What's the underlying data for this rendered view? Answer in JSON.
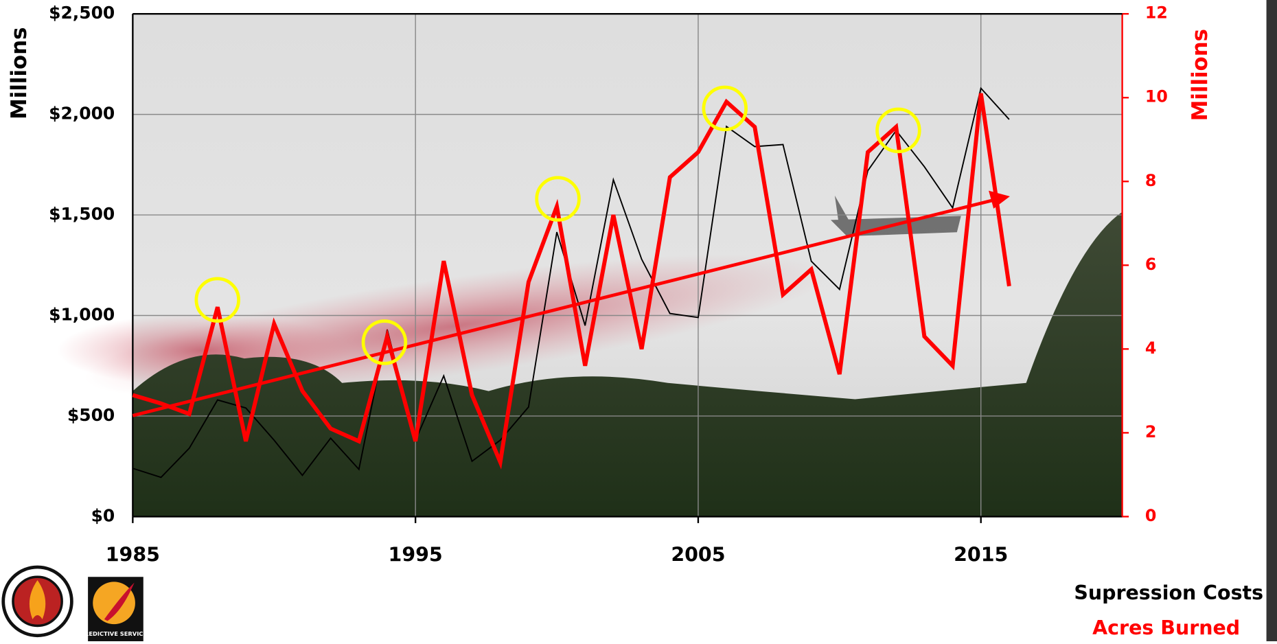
{
  "chart_data": {
    "type": "line",
    "y_label": "Millions",
    "y2_label": "Millions",
    "x": [
      1985,
      1986,
      1987,
      1988,
      1989,
      1990,
      1991,
      1992,
      1993,
      1994,
      1995,
      1996,
      1997,
      1998,
      1999,
      2000,
      2001,
      2002,
      2003,
      2004,
      2005,
      2006,
      2007,
      2008,
      2009,
      2010,
      2011,
      2012,
      2013,
      2014,
      2015,
      2016
    ],
    "xlim": [
      1985,
      2020
    ],
    "xticks": [
      1985,
      1995,
      2005,
      2015
    ],
    "ylim": [
      0,
      2500
    ],
    "yticks": [
      {
        "value": 0,
        "label": "$0"
      },
      {
        "value": 500,
        "label": "$500"
      },
      {
        "value": 1000,
        "label": "$1,000"
      },
      {
        "value": 1500,
        "label": "$1,500"
      },
      {
        "value": 2000,
        "label": "$2,000"
      },
      {
        "value": 2500,
        "label": "$2,500"
      }
    ],
    "y2lim": [
      0,
      12
    ],
    "y2ticks": [
      0,
      2,
      4,
      6,
      8,
      10,
      12
    ],
    "grid": true,
    "series": [
      {
        "name": "Supression Costs",
        "color": "#000000",
        "axis": "y",
        "values": [
          240,
          195,
          340,
          580,
          540,
          380,
          205,
          390,
          235,
          930,
          380,
          700,
          275,
          380,
          545,
          1415,
          950,
          1675,
          1280,
          1010,
          990,
          1940,
          1840,
          1850,
          1270,
          1130,
          1720,
          1920,
          1740,
          1535,
          2130,
          1975
        ]
      },
      {
        "name": "Acres Burned",
        "color": "#ff0000",
        "axis": "y2",
        "values": [
          2.9,
          2.7,
          2.45,
          5.0,
          1.8,
          4.6,
          3.0,
          2.1,
          1.8,
          4.3,
          1.8,
          6.1,
          2.9,
          1.3,
          5.6,
          7.4,
          3.6,
          7.2,
          4.0,
          8.1,
          8.7,
          9.9,
          9.3,
          5.3,
          5.9,
          3.4,
          8.7,
          9.3,
          4.3,
          3.6,
          10.1,
          5.5
        ]
      }
    ]
  },
  "logos": {
    "predictive": "PREDICTIVE SERVICES"
  }
}
